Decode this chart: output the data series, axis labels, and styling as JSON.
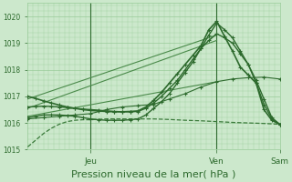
{
  "title": "",
  "xlabel": "Pression niveau de la mer( hPa )",
  "bg_color": "#cce8cc",
  "plot_bg_color": "#cce8cc",
  "grid_color": "#99cc99",
  "tick_color": "#2d6a2d",
  "xlabel_fontsize": 8,
  "ylim": [
    1015,
    1020.5
  ],
  "xlim": [
    0,
    96
  ],
  "yticks": [
    1015,
    1016,
    1017,
    1018,
    1019,
    1020
  ],
  "day_labels": [
    "Jeu",
    "Ven",
    "Sam"
  ],
  "day_positions": [
    24,
    72,
    96
  ],
  "vlines": [
    24,
    72
  ],
  "series": [
    {
      "x": [
        0,
        3,
        6,
        9,
        12,
        15,
        18,
        21,
        24,
        30,
        36,
        42,
        48,
        54,
        60,
        66,
        72,
        78,
        84,
        90,
        96
      ],
      "y": [
        1015.1,
        1015.35,
        1015.6,
        1015.8,
        1015.95,
        1016.05,
        1016.1,
        1016.12,
        1016.12,
        1016.15,
        1016.15,
        1016.15,
        1016.15,
        1016.13,
        1016.1,
        1016.08,
        1016.05,
        1016.02,
        1016.0,
        1015.98,
        1015.95
      ],
      "style": "--",
      "marker": null,
      "color": "#3a7a3a",
      "lw": 0.9,
      "ms": 0
    },
    {
      "x": [
        0,
        72
      ],
      "y": [
        1016.9,
        1019.3
      ],
      "style": "-",
      "marker": null,
      "color": "#4a8a4a",
      "lw": 0.8,
      "ms": 0
    },
    {
      "x": [
        0,
        72
      ],
      "y": [
        1016.55,
        1019.1
      ],
      "style": "-",
      "marker": null,
      "color": "#4a8a4a",
      "lw": 0.8,
      "ms": 0
    },
    {
      "x": [
        0,
        72
      ],
      "y": [
        1016.25,
        1017.55
      ],
      "style": "-",
      "marker": null,
      "color": "#4a8a4a",
      "lw": 0.8,
      "ms": 0
    },
    {
      "x": [
        0,
        3,
        6,
        9,
        12,
        15,
        18,
        21,
        24,
        27,
        30,
        33,
        36,
        39,
        42,
        45,
        48,
        51,
        54,
        57,
        60,
        63,
        66,
        69,
        72,
        75,
        78,
        81,
        84,
        87,
        90,
        93,
        96
      ],
      "y": [
        1016.2,
        1016.25,
        1016.3,
        1016.3,
        1016.3,
        1016.28,
        1016.25,
        1016.2,
        1016.15,
        1016.12,
        1016.1,
        1016.1,
        1016.1,
        1016.12,
        1016.15,
        1016.3,
        1016.55,
        1016.8,
        1017.1,
        1017.5,
        1017.9,
        1018.3,
        1018.8,
        1019.3,
        1019.75,
        1019.5,
        1019.2,
        1018.7,
        1018.2,
        1017.5,
        1016.7,
        1016.15,
        1015.95
      ],
      "style": "-",
      "marker": "+",
      "color": "#2d6a2d",
      "lw": 1.0,
      "ms": 3
    },
    {
      "x": [
        0,
        3,
        6,
        9,
        12,
        15,
        18,
        21,
        24,
        27,
        30,
        33,
        36,
        39,
        42,
        45,
        48,
        51,
        54,
        57,
        60,
        63,
        66,
        69,
        72,
        75,
        78,
        81,
        84,
        87,
        90,
        93,
        96
      ],
      "y": [
        1016.6,
        1016.62,
        1016.63,
        1016.62,
        1016.6,
        1016.58,
        1016.55,
        1016.52,
        1016.5,
        1016.48,
        1016.45,
        1016.43,
        1016.42,
        1016.42,
        1016.43,
        1016.55,
        1016.75,
        1017.0,
        1017.3,
        1017.6,
        1018.0,
        1018.4,
        1018.8,
        1019.1,
        1019.35,
        1019.2,
        1019.0,
        1018.6,
        1018.2,
        1017.6,
        1016.9,
        1016.2,
        1015.95
      ],
      "style": "-",
      "marker": "+",
      "color": "#2d6a2d",
      "lw": 1.0,
      "ms": 3
    },
    {
      "x": [
        0,
        3,
        6,
        9,
        12,
        15,
        18,
        21,
        24,
        27,
        30,
        33,
        36,
        39,
        42,
        45,
        48,
        51,
        54,
        57,
        60,
        63,
        66,
        69,
        72,
        75,
        78,
        81,
        84,
        87,
        90,
        93,
        96
      ],
      "y": [
        1017.0,
        1016.92,
        1016.83,
        1016.75,
        1016.67,
        1016.6,
        1016.55,
        1016.5,
        1016.47,
        1016.45,
        1016.43,
        1016.42,
        1016.42,
        1016.43,
        1016.45,
        1016.6,
        1016.85,
        1017.15,
        1017.5,
        1017.85,
        1018.2,
        1018.55,
        1018.9,
        1019.5,
        1019.82,
        1019.25,
        1018.7,
        1018.1,
        1017.8,
        1017.5,
        1016.5,
        1016.1,
        1015.95
      ],
      "style": "-",
      "marker": "+",
      "color": "#2d6a2d",
      "lw": 1.2,
      "ms": 3
    },
    {
      "x": [
        0,
        6,
        12,
        18,
        24,
        30,
        36,
        42,
        48,
        54,
        60,
        66,
        72,
        78,
        84,
        90,
        96
      ],
      "y": [
        1016.15,
        1016.2,
        1016.25,
        1016.3,
        1016.35,
        1016.5,
        1016.6,
        1016.65,
        1016.7,
        1016.9,
        1017.1,
        1017.35,
        1017.55,
        1017.65,
        1017.7,
        1017.72,
        1017.65
      ],
      "style": "-",
      "marker": "+",
      "color": "#2d6a2d",
      "lw": 0.8,
      "ms": 3
    }
  ]
}
